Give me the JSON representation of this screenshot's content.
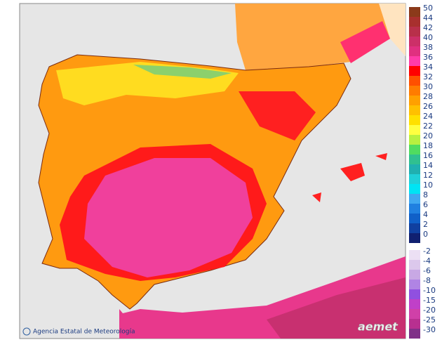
{
  "map": {
    "credit": "Agencia Estatal de Meteorología",
    "logo": "aemet",
    "legend": {
      "labels": [
        50,
        44,
        42,
        40,
        38,
        36,
        34,
        32,
        30,
        28,
        26,
        24,
        22,
        20,
        18,
        16,
        14,
        12,
        10,
        8,
        6,
        4,
        2,
        0,
        -2,
        -4,
        -6,
        -8,
        -10,
        -15,
        -20,
        -25,
        -30
      ],
      "colors": [
        "#8b3a1a",
        "#a8302e",
        "#b8304a",
        "#cc3068",
        "#e03080",
        "#ff3ca8",
        "#ff0000",
        "#ff5000",
        "#ff7c00",
        "#ffa000",
        "#ffc000",
        "#ffe000",
        "#ffff40",
        "#b8f040",
        "#50dc60",
        "#30c090",
        "#20b0b0",
        "#20d0d8",
        "#00e4f4",
        "#40a8f0",
        "#2080e0",
        "#1060c8",
        "#1040a0",
        "#102070",
        "#ece0f4",
        "#dcc8ec",
        "#c8a8e4",
        "#b084e4",
        "#9050e0",
        "#c040c8",
        "#d040a8",
        "#b83090",
        "#803088"
      ]
    }
  }
}
